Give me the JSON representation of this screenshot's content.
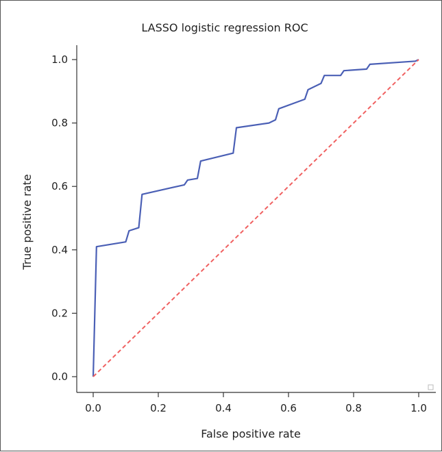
{
  "chart_data": {
    "type": "line",
    "title": "LASSO logistic regression ROC",
    "xlabel": "False positive rate",
    "ylabel": "True positive rate",
    "xlim": [
      0.0,
      1.0
    ],
    "ylim": [
      0.0,
      1.0
    ],
    "xticks": [
      "0.0",
      "0.2",
      "0.4",
      "0.6",
      "0.8",
      "1.0"
    ],
    "yticks": [
      "0.0",
      "0.2",
      "0.4",
      "0.6",
      "0.8",
      "1.0"
    ],
    "grid": false,
    "series": [
      {
        "color": "#4a5fb5",
        "style": "solid",
        "x": [
          0.0,
          0.01,
          0.1,
          0.11,
          0.14,
          0.15,
          0.28,
          0.29,
          0.32,
          0.33,
          0.43,
          0.44,
          0.54,
          0.55,
          0.56,
          0.57,
          0.65,
          0.66,
          0.7,
          0.71,
          0.76,
          0.77,
          0.84,
          0.85,
          0.99,
          1.0
        ],
        "y": [
          0.0,
          0.41,
          0.425,
          0.46,
          0.47,
          0.575,
          0.605,
          0.62,
          0.625,
          0.68,
          0.705,
          0.785,
          0.8,
          0.805,
          0.81,
          0.845,
          0.875,
          0.905,
          0.925,
          0.95,
          0.95,
          0.965,
          0.97,
          0.985,
          0.995,
          1.0
        ]
      },
      {
        "color": "#f06060",
        "style": "dashed",
        "x": [
          0.0,
          1.0
        ],
        "y": [
          0.0,
          1.0
        ]
      }
    ]
  }
}
